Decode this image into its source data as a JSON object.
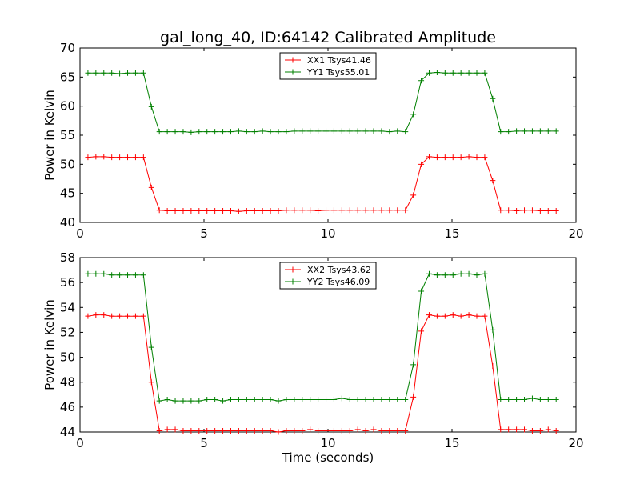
{
  "figure": {
    "title": "gal_long_40, ID:64142 Calibrated Amplitude"
  },
  "chart_data": [
    {
      "type": "line",
      "title": "gal_long_40, ID:64142 Calibrated Amplitude",
      "xlabel": "",
      "ylabel": "Power in Kelvin",
      "xlim": [
        0,
        20
      ],
      "ylim": [
        40,
        70
      ],
      "xticks": [
        0,
        5,
        10,
        15,
        20
      ],
      "yticks": [
        40,
        45,
        50,
        55,
        60,
        65,
        70
      ],
      "grid": false,
      "legend_position": "top-center",
      "x": [
        0.32,
        0.64,
        0.96,
        1.28,
        1.6,
        1.92,
        2.24,
        2.56,
        2.88,
        3.2,
        3.52,
        3.84,
        4.16,
        4.48,
        4.8,
        5.12,
        5.44,
        5.76,
        6.08,
        6.4,
        6.72,
        7.04,
        7.36,
        7.68,
        8.0,
        8.32,
        8.64,
        8.96,
        9.28,
        9.6,
        9.92,
        10.24,
        10.56,
        10.88,
        11.2,
        11.52,
        11.84,
        12.16,
        12.48,
        12.8,
        13.12,
        13.44,
        13.76,
        14.08,
        14.4,
        14.72,
        15.04,
        15.36,
        15.68,
        16.0,
        16.32,
        16.64,
        16.96,
        17.28,
        17.6,
        17.92,
        18.24,
        18.56,
        18.88,
        19.2
      ],
      "series": [
        {
          "name": "XX1 Tsys41.46",
          "color": "#ff0000",
          "values": [
            51.2,
            51.3,
            51.3,
            51.2,
            51.2,
            51.2,
            51.2,
            51.2,
            46.0,
            42.1,
            42.0,
            42.0,
            42.0,
            42.0,
            42.0,
            42.0,
            42.0,
            42.0,
            42.0,
            41.9,
            42.0,
            42.0,
            42.0,
            42.0,
            42.0,
            42.1,
            42.1,
            42.1,
            42.1,
            42.0,
            42.1,
            42.1,
            42.1,
            42.1,
            42.1,
            42.1,
            42.1,
            42.1,
            42.1,
            42.1,
            42.1,
            44.7,
            50.0,
            51.3,
            51.2,
            51.2,
            51.2,
            51.2,
            51.3,
            51.2,
            51.2,
            47.2,
            42.1,
            42.1,
            42.0,
            42.1,
            42.1,
            42.0,
            42.0,
            42.0
          ]
        },
        {
          "name": "YY1 Tsys55.01",
          "color": "#008000",
          "values": [
            65.7,
            65.7,
            65.7,
            65.7,
            65.6,
            65.7,
            65.7,
            65.7,
            59.9,
            55.6,
            55.6,
            55.6,
            55.6,
            55.5,
            55.6,
            55.6,
            55.6,
            55.6,
            55.6,
            55.7,
            55.6,
            55.6,
            55.7,
            55.6,
            55.6,
            55.6,
            55.7,
            55.7,
            55.7,
            55.7,
            55.7,
            55.7,
            55.7,
            55.7,
            55.7,
            55.7,
            55.7,
            55.7,
            55.6,
            55.7,
            55.6,
            58.6,
            64.4,
            65.7,
            65.8,
            65.7,
            65.7,
            65.7,
            65.7,
            65.7,
            65.7,
            61.3,
            55.6,
            55.6,
            55.7,
            55.7,
            55.7,
            55.7,
            55.7,
            55.7
          ]
        }
      ]
    },
    {
      "type": "line",
      "title": "",
      "xlabel": "Time (seconds)",
      "ylabel": "Power in Kelvin",
      "xlim": [
        0,
        20
      ],
      "ylim": [
        44,
        58
      ],
      "xticks": [
        0,
        5,
        10,
        15,
        20
      ],
      "yticks": [
        44,
        46,
        48,
        50,
        52,
        54,
        56,
        58
      ],
      "grid": false,
      "legend_position": "top-center",
      "x": [
        0.32,
        0.64,
        0.96,
        1.28,
        1.6,
        1.92,
        2.24,
        2.56,
        2.88,
        3.2,
        3.52,
        3.84,
        4.16,
        4.48,
        4.8,
        5.12,
        5.44,
        5.76,
        6.08,
        6.4,
        6.72,
        7.04,
        7.36,
        7.68,
        8.0,
        8.32,
        8.64,
        8.96,
        9.28,
        9.6,
        9.92,
        10.24,
        10.56,
        10.88,
        11.2,
        11.52,
        11.84,
        12.16,
        12.48,
        12.8,
        13.12,
        13.44,
        13.76,
        14.08,
        14.4,
        14.72,
        15.04,
        15.36,
        15.68,
        16.0,
        16.32,
        16.64,
        16.96,
        17.28,
        17.6,
        17.92,
        18.24,
        18.56,
        18.88,
        19.2
      ],
      "series": [
        {
          "name": "XX2 Tsys43.62",
          "color": "#ff0000",
          "values": [
            53.3,
            53.4,
            53.4,
            53.3,
            53.3,
            53.3,
            53.3,
            53.3,
            48.0,
            44.1,
            44.2,
            44.2,
            44.1,
            44.1,
            44.1,
            44.1,
            44.1,
            44.1,
            44.1,
            44.1,
            44.1,
            44.1,
            44.1,
            44.1,
            44.0,
            44.1,
            44.1,
            44.1,
            44.2,
            44.1,
            44.1,
            44.1,
            44.1,
            44.1,
            44.2,
            44.1,
            44.2,
            44.1,
            44.1,
            44.1,
            44.1,
            46.8,
            52.1,
            53.4,
            53.3,
            53.3,
            53.4,
            53.3,
            53.4,
            53.3,
            53.3,
            49.3,
            44.2,
            44.2,
            44.2,
            44.2,
            44.1,
            44.1,
            44.2,
            44.1
          ]
        },
        {
          "name": "YY2 Tsys46.09",
          "color": "#008000",
          "values": [
            56.7,
            56.7,
            56.7,
            56.6,
            56.6,
            56.6,
            56.6,
            56.6,
            50.8,
            46.5,
            46.6,
            46.5,
            46.5,
            46.5,
            46.5,
            46.6,
            46.6,
            46.5,
            46.6,
            46.6,
            46.6,
            46.6,
            46.6,
            46.6,
            46.5,
            46.6,
            46.6,
            46.6,
            46.6,
            46.6,
            46.6,
            46.6,
            46.7,
            46.6,
            46.6,
            46.6,
            46.6,
            46.6,
            46.6,
            46.6,
            46.6,
            49.4,
            55.3,
            56.7,
            56.6,
            56.6,
            56.6,
            56.7,
            56.7,
            56.6,
            56.7,
            52.2,
            46.6,
            46.6,
            46.6,
            46.6,
            46.7,
            46.6,
            46.6,
            46.6
          ]
        }
      ]
    }
  ]
}
